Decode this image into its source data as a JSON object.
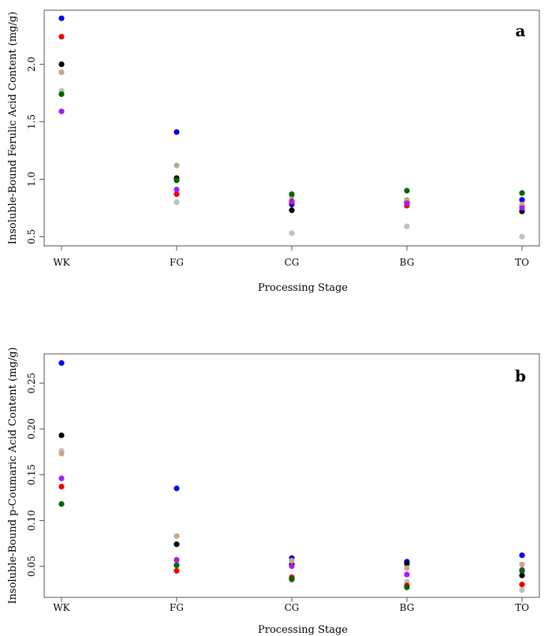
{
  "chart_data": [
    {
      "type": "scatter",
      "panel_label": "a",
      "categories": [
        "WK",
        "FG",
        "CG",
        "BG",
        "TO"
      ],
      "xlabel": "Processing Stage",
      "ylabel": "Insoluble-Bound Ferulic Acid Content (mg/g)",
      "ylim": [
        0.42,
        2.47
      ],
      "yticks": [
        "0.5",
        "1.0",
        "1.5",
        "2.0"
      ],
      "series": [
        {
          "name": "blue",
          "color": "#0000ee",
          "values": [
            2.4,
            1.41,
            0.78,
            0.8,
            0.82
          ]
        },
        {
          "name": "red",
          "color": "#ee0000",
          "values": [
            2.24,
            0.87,
            0.8,
            0.77,
            0.77
          ]
        },
        {
          "name": "black",
          "color": "#000000",
          "values": [
            2.0,
            1.01,
            0.73,
            0.8,
            0.72
          ]
        },
        {
          "name": "tan",
          "color": "#c8a788",
          "values": [
            1.93,
            1.12,
            0.85,
            0.82,
            0.78
          ]
        },
        {
          "name": "gray",
          "color": "#c0c0c0",
          "values": [
            1.77,
            0.8,
            0.53,
            0.59,
            0.5
          ]
        },
        {
          "name": "green",
          "color": "#006400",
          "values": [
            1.74,
            0.99,
            0.87,
            0.9,
            0.88
          ]
        },
        {
          "name": "purple",
          "color": "#a020f0",
          "values": [
            1.59,
            0.91,
            0.81,
            0.79,
            0.75
          ]
        }
      ]
    },
    {
      "type": "scatter",
      "panel_label": "b",
      "categories": [
        "WK",
        "FG",
        "CG",
        "BG",
        "TO"
      ],
      "xlabel": "Processing Stage",
      "ylabel": "Insoluble-Bound p-Coumaric  Acid Content (mg/g)",
      "ylim": [
        0.016,
        0.282
      ],
      "yticks": [
        "0.05",
        "0.10",
        "0.15",
        "0.20",
        "0.25"
      ],
      "series": [
        {
          "name": "blue",
          "color": "#0000ee",
          "values": [
            0.272,
            0.135,
            0.059,
            0.055,
            0.062
          ]
        },
        {
          "name": "black",
          "color": "#000000",
          "values": [
            0.193,
            0.074,
            0.052,
            0.053,
            0.04
          ]
        },
        {
          "name": "gray",
          "color": "#c0c0c0",
          "values": [
            0.176,
            0.054,
            0.035,
            0.033,
            0.024
          ]
        },
        {
          "name": "tan",
          "color": "#c8a788",
          "values": [
            0.173,
            0.083,
            0.056,
            0.048,
            0.052
          ]
        },
        {
          "name": "purple",
          "color": "#a020f0",
          "values": [
            0.146,
            0.057,
            0.05,
            0.041,
            0.046
          ]
        },
        {
          "name": "red",
          "color": "#ee0000",
          "values": [
            0.137,
            0.045,
            0.038,
            0.029,
            0.03
          ]
        },
        {
          "name": "green",
          "color": "#006400",
          "values": [
            0.118,
            0.051,
            0.036,
            0.027,
            0.045
          ]
        }
      ]
    }
  ]
}
